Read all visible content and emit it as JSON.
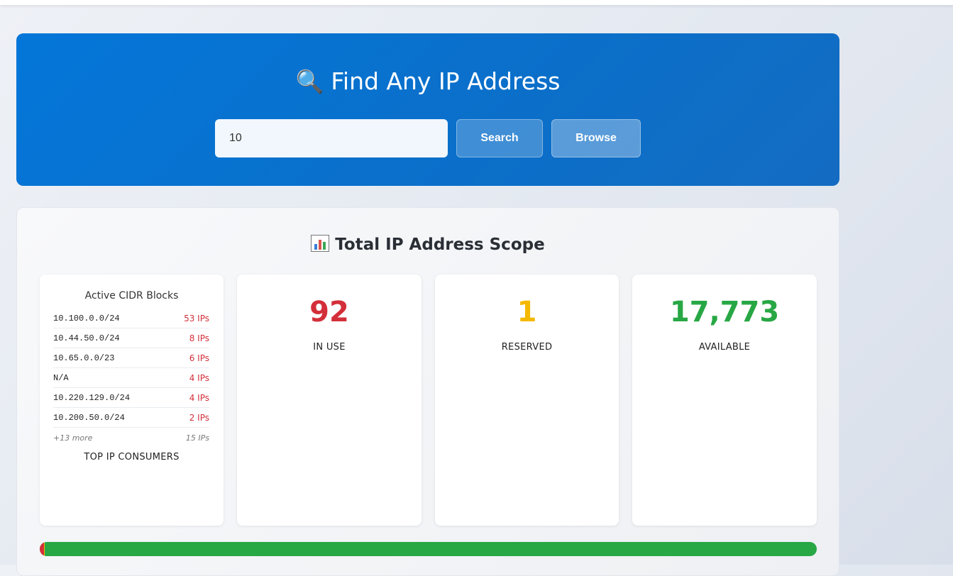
{
  "search": {
    "title": "Find Any IP Address",
    "icon": "magnifying-glass-icon",
    "input_value": "10",
    "input_placeholder": "",
    "search_label": "Search",
    "browse_label": "Browse"
  },
  "scope": {
    "title": "Total IP Address Scope",
    "icon": "bar-chart-icon",
    "cidr": {
      "title": "Active CIDR Blocks",
      "items": [
        {
          "network": "10.100.0.0/24",
          "count": "53 IPs"
        },
        {
          "network": "10.44.50.0/24",
          "count": "8 IPs"
        },
        {
          "network": "10.65.0.0/23",
          "count": "6 IPs"
        },
        {
          "network": "N/A",
          "count": "4 IPs"
        },
        {
          "network": "10.220.129.0/24",
          "count": "4 IPs"
        },
        {
          "network": "10.200.50.0/24",
          "count": "2 IPs"
        }
      ],
      "more_label": "+13 more",
      "more_count": "15 IPs",
      "footer": "TOP IP CONSUMERS"
    },
    "in_use": {
      "value": "92",
      "label": "IN USE",
      "color": "#d32f3a"
    },
    "reserved": {
      "value": "1",
      "label": "RESERVED",
      "color": "#f5b800"
    },
    "available": {
      "value": "17,773",
      "label": "AVAILABLE",
      "color": "#28a745"
    },
    "usage": {
      "in_use_fraction": 0.00515,
      "reserved_fraction": 6e-05,
      "colors": {
        "in_use": "#d32f3a",
        "reserved": "#f5b800",
        "available": "#28a745"
      }
    }
  }
}
